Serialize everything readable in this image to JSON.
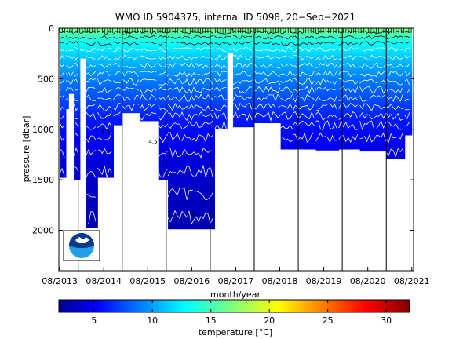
{
  "chart_data": {
    "type": "heatmap",
    "title": "WMO ID 5904375, internal ID 5098, 20−Sep−2021",
    "xlabel": "month/year",
    "ylabel": "pressure [dbar]",
    "x_ticks": [
      "08/2013",
      "08/2014",
      "08/2015",
      "08/2016",
      "08/2017",
      "08/2018",
      "08/2019",
      "08/2020",
      "08/2021"
    ],
    "x_tick_years": [
      2013.58,
      2014.58,
      2015.58,
      2016.58,
      2017.58,
      2018.58,
      2019.58,
      2020.58,
      2021.58
    ],
    "xlim": [
      2013.56,
      2021.62
    ],
    "y_ticks": [
      "0",
      "500",
      "1000",
      "1500",
      "2000"
    ],
    "y_tick_values": [
      0,
      500,
      1000,
      1500,
      2000
    ],
    "ylim": [
      2400,
      0
    ],
    "y_reversed": true,
    "grid": false,
    "year_dividers": [
      2014.0,
      2015.0,
      2016.0,
      2017.0,
      2018.0,
      2019.0,
      2020.0,
      2021.0
    ],
    "colorbar": {
      "label": "temperature [°C]",
      "range": [
        2,
        32
      ],
      "ticks": [
        "5",
        "10",
        "15",
        "20",
        "25",
        "30"
      ],
      "tick_values": [
        5,
        10,
        15,
        20,
        25,
        30
      ],
      "colormap": "jet"
    },
    "data_coverage": [
      {
        "x": [
          2013.58,
          2013.72
        ],
        "max_depth": 1480
      },
      {
        "x": [
          2013.72,
          2013.78
        ],
        "max_depth": 800
      },
      {
        "x": [
          2013.78,
          2013.9
        ],
        "max_depth": 650
      },
      {
        "x": [
          2013.9,
          2014.04
        ],
        "max_depth": 1500
      },
      {
        "x": [
          2014.04,
          2014.18
        ],
        "max_depth": 300
      },
      {
        "x": [
          2014.18,
          2014.44
        ],
        "max_depth": 1980
      },
      {
        "x": [
          2014.44,
          2014.8
        ],
        "max_depth": 1480
      },
      {
        "x": [
          2014.8,
          2015.0
        ],
        "max_depth": 960
      },
      {
        "x": [
          2015.0,
          2015.4
        ],
        "max_depth": 840
      },
      {
        "x": [
          2015.4,
          2015.82
        ],
        "max_depth": 920
      },
      {
        "x": [
          2015.82,
          2016.04
        ],
        "max_depth": 1500
      },
      {
        "x": [
          2016.04,
          2017.1
        ],
        "max_depth": 1990
      },
      {
        "x": [
          2017.1,
          2017.38
        ],
        "max_depth": 1000
      },
      {
        "x": [
          2017.38,
          2017.52
        ],
        "max_depth": 240
      },
      {
        "x": [
          2017.52,
          2018.0
        ],
        "max_depth": 980
      },
      {
        "x": [
          2018.0,
          2018.6
        ],
        "max_depth": 940
      },
      {
        "x": [
          2018.6,
          2018.88
        ],
        "max_depth": 1200
      },
      {
        "x": [
          2018.88,
          2019.4
        ],
        "max_depth": 1200
      },
      {
        "x": [
          2019.4,
          2019.92
        ],
        "max_depth": 1210
      },
      {
        "x": [
          2019.92,
          2020.4
        ],
        "max_depth": 1200
      },
      {
        "x": [
          2020.4,
          2021.0
        ],
        "max_depth": 1220
      },
      {
        "x": [
          2021.0,
          2021.42
        ],
        "max_depth": 1290
      },
      {
        "x": [
          2021.42,
          2021.58
        ],
        "max_depth": 1060
      }
    ],
    "temperature_profile": [
      {
        "pressure": 0,
        "temperature": 17
      },
      {
        "pressure": 60,
        "temperature": 15
      },
      {
        "pressure": 150,
        "temperature": 13
      },
      {
        "pressure": 300,
        "temperature": 11
      },
      {
        "pressure": 500,
        "temperature": 9
      },
      {
        "pressure": 700,
        "temperature": 7.5
      },
      {
        "pressure": 900,
        "temperature": 6
      },
      {
        "pressure": 1100,
        "temperature": 5
      },
      {
        "pressure": 1300,
        "temperature": 4.2
      },
      {
        "pressure": 1600,
        "temperature": 3.6
      },
      {
        "pressure": 2000,
        "temperature": 3
      }
    ],
    "contours": [
      {
        "pressure": 40,
        "color": "black"
      },
      {
        "pressure": 90,
        "color": "black"
      },
      {
        "pressure": 150,
        "color": "black"
      },
      {
        "pressure": 210,
        "color": "white"
      },
      {
        "pressure": 290,
        "color": "white"
      },
      {
        "pressure": 370,
        "color": "white"
      },
      {
        "pressure": 450,
        "color": "white"
      },
      {
        "pressure": 530,
        "color": "white"
      },
      {
        "pressure": 610,
        "color": "white"
      },
      {
        "pressure": 690,
        "color": "white"
      },
      {
        "pressure": 780,
        "color": "white"
      },
      {
        "pressure": 870,
        "color": "white"
      },
      {
        "pressure": 960,
        "color": "white"
      },
      {
        "pressure": 1080,
        "color": "white"
      },
      {
        "pressure": 1230,
        "color": "white"
      },
      {
        "pressure": 1420,
        "color": "white"
      },
      {
        "pressure": 1640,
        "color": "white"
      },
      {
        "pressure": 1870,
        "color": "white"
      }
    ],
    "contour_labels": [
      {
        "x": 2015.05,
        "pressure": 60,
        "text": "14"
      },
      {
        "x": 2016.6,
        "pressure": 30,
        "text": "12"
      },
      {
        "x": 2017.45,
        "pressure": 30,
        "text": "13"
      },
      {
        "x": 2015.7,
        "pressure": 1140,
        "text": "4.5"
      },
      {
        "x": 2014.62,
        "pressure": 1040,
        "text": "4.5"
      },
      {
        "x": 2016.55,
        "pressure": 1870,
        "text": "2.5"
      }
    ],
    "logo": "NOAA"
  }
}
